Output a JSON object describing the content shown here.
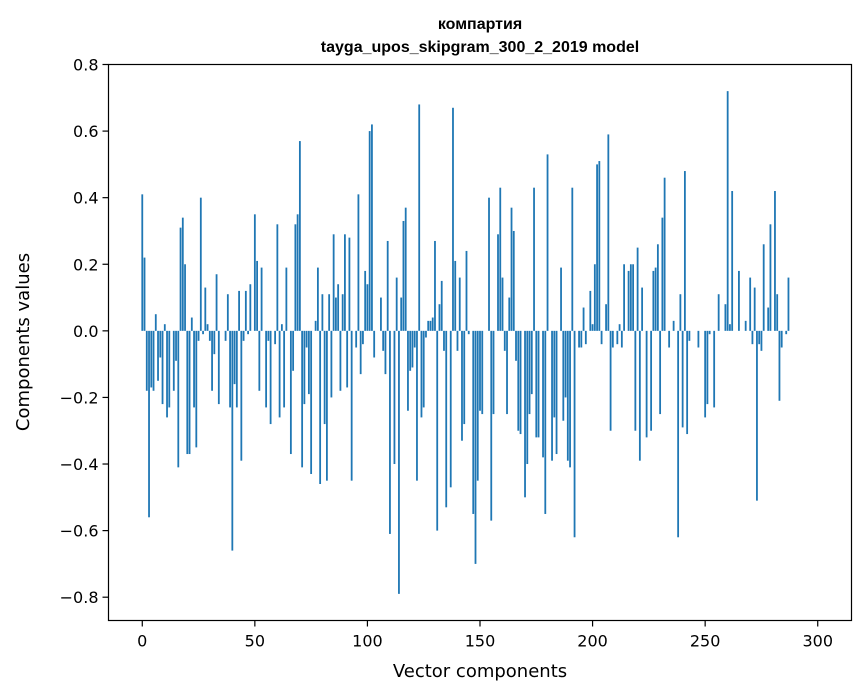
{
  "chart_data": {
    "type": "bar",
    "title_line1": "компартия",
    "title_line2": "tayga_upos_skipgram_300_2_2019 model",
    "xlabel": "Vector components",
    "ylabel": "Components values",
    "xlim": [
      -15,
      315
    ],
    "ylim": [
      -0.87,
      0.8
    ],
    "xticks": [
      0,
      50,
      100,
      150,
      200,
      250,
      300
    ],
    "xtick_labels": [
      "0",
      "50",
      "100",
      "150",
      "200",
      "250",
      "300"
    ],
    "yticks": [
      0.8,
      0.6,
      0.4,
      0.2,
      0.0,
      -0.2,
      -0.4,
      -0.6,
      -0.8
    ],
    "ytick_labels": [
      "0.8",
      "0.6",
      "0.4",
      "0.2",
      "0.0",
      "−0.2",
      "−0.4",
      "−0.6",
      "−0.8"
    ],
    "bar_color": "#1f77b4",
    "x_start": 0,
    "values": [
      0.41,
      0.22,
      -0.18,
      -0.56,
      -0.17,
      -0.18,
      0.05,
      -0.15,
      -0.08,
      -0.22,
      0.02,
      -0.26,
      -0.23,
      0.0,
      -0.18,
      -0.09,
      -0.41,
      0.31,
      0.34,
      0.2,
      -0.37,
      -0.37,
      0.04,
      -0.23,
      -0.35,
      -0.03,
      0.4,
      -0.01,
      0.13,
      0.02,
      -0.03,
      -0.18,
      -0.07,
      0.17,
      -0.22,
      0.0,
      0.0,
      -0.03,
      0.11,
      -0.23,
      -0.66,
      -0.16,
      -0.23,
      0.12,
      -0.39,
      -0.03,
      0.12,
      -0.01,
      0.14,
      0.0,
      0.35,
      0.21,
      -0.18,
      0.19,
      0.0,
      -0.23,
      -0.03,
      -0.28,
      0.0,
      -0.04,
      0.32,
      -0.26,
      0.02,
      -0.23,
      0.19,
      0.0,
      -0.37,
      -0.12,
      0.32,
      0.35,
      0.57,
      -0.41,
      -0.22,
      -0.05,
      -0.19,
      -0.43,
      0.0,
      0.03,
      0.19,
      -0.46,
      0.11,
      -0.28,
      -0.45,
      0.11,
      -0.2,
      0.29,
      0.1,
      0.14,
      -0.18,
      0.11,
      0.29,
      -0.17,
      0.28,
      -0.45,
      0.0,
      -0.05,
      0.41,
      -0.13,
      -0.04,
      0.18,
      0.14,
      0.6,
      0.62,
      -0.08,
      0.0,
      0.0,
      0.1,
      -0.06,
      -0.13,
      0.27,
      -0.61,
      0.0,
      -0.4,
      0.16,
      -0.79,
      0.1,
      0.33,
      0.37,
      -0.24,
      -0.12,
      -0.11,
      -0.05,
      -0.45,
      0.68,
      -0.26,
      -0.23,
      -0.02,
      0.03,
      0.03,
      0.04,
      0.27,
      -0.6,
      0.08,
      0.15,
      -0.06,
      -0.53,
      0.0,
      -0.47,
      0.67,
      0.21,
      -0.06,
      0.16,
      -0.33,
      -0.28,
      0.24,
      -0.01,
      0.0,
      -0.55,
      -0.7,
      -0.45,
      -0.24,
      -0.25,
      0.0,
      0.0,
      0.4,
      -0.57,
      -0.25,
      0.0,
      0.29,
      0.43,
      0.16,
      -0.06,
      -0.25,
      0.1,
      0.37,
      0.3,
      -0.09,
      -0.3,
      -0.31,
      0.0,
      -0.5,
      -0.4,
      -0.25,
      -0.19,
      0.43,
      -0.32,
      -0.32,
      0.0,
      -0.38,
      -0.55,
      0.53,
      0.0,
      -0.39,
      -0.26,
      -0.37,
      0.0,
      0.19,
      -0.27,
      -0.2,
      -0.39,
      -0.41,
      0.43,
      -0.62,
      0.0,
      -0.05,
      -0.05,
      0.07,
      -0.04,
      0.0,
      0.12,
      0.02,
      0.2,
      0.5,
      0.51,
      -0.04,
      0.0,
      0.08,
      0.59,
      -0.3,
      -0.05,
      0.0,
      -0.04,
      0.02,
      -0.05,
      0.2,
      0.0,
      0.18,
      0.2,
      0.2,
      -0.3,
      0.25,
      -0.39,
      0.13,
      0.0,
      -0.32,
      0.0,
      -0.3,
      0.18,
      0.19,
      0.26,
      -0.25,
      0.34,
      0.46,
      0.0,
      -0.05,
      0.0,
      0.03,
      0.0,
      -0.62,
      0.11,
      -0.29,
      0.48,
      -0.31,
      -0.03,
      0.0,
      0.0,
      0.0,
      -0.05,
      0.0,
      0.0,
      -0.26,
      -0.22,
      -0.01,
      0.0,
      -0.23,
      0.0,
      0.11,
      0.0,
      0.0,
      0.08,
      0.72,
      0.02,
      0.42,
      0.0,
      0.0,
      0.18,
      0.0,
      0.0,
      0.03,
      0.0,
      0.16,
      -0.04,
      0.13,
      -0.51,
      -0.04,
      -0.06,
      0.26,
      0.0,
      0.07,
      0.32,
      0.0,
      0.42,
      0.11,
      -0.21,
      -0.05,
      0.0,
      -0.01,
      0.16
    ]
  }
}
